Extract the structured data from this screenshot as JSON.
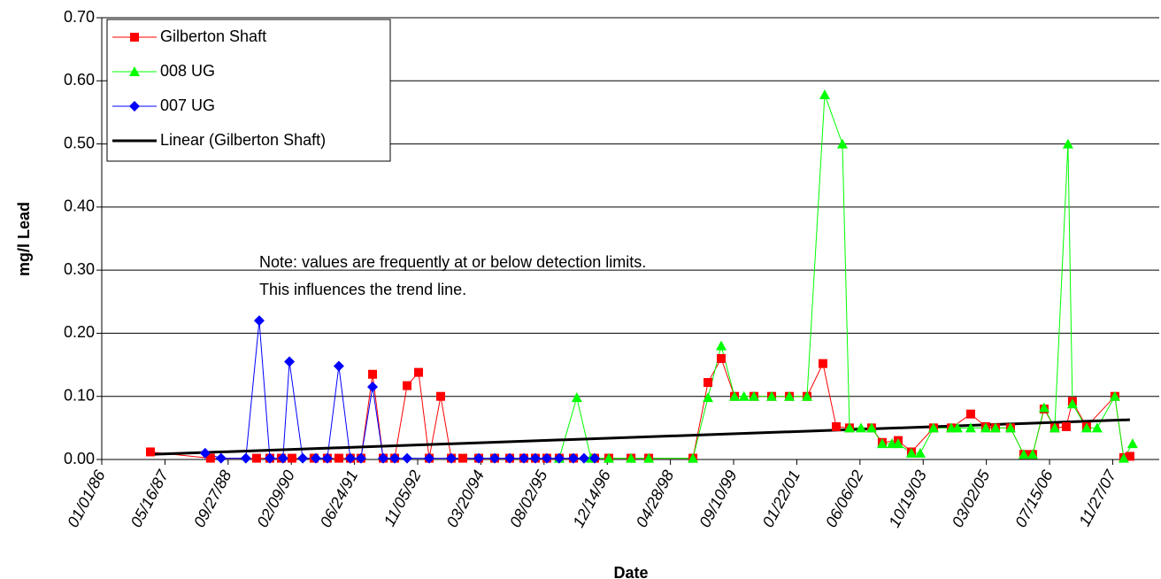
{
  "chart_data": {
    "type": "line",
    "x_label": "Date",
    "y_label": "mg/l Lead",
    "annotations": [
      "Note: values are frequently at or below detection limits.",
      "This influences the trend line."
    ],
    "legend": "upper left",
    "grid": true,
    "xlim": [
      "1986-01-01",
      "2008-11-29"
    ],
    "xticks": [
      {
        "value": "1986-01-01",
        "label": "01/01/86"
      },
      {
        "value": "1987-05-16",
        "label": "05/16/87"
      },
      {
        "value": "1988-09-27",
        "label": "09/27/88"
      },
      {
        "value": "1990-02-09",
        "label": "02/09/90"
      },
      {
        "value": "1991-06-24",
        "label": "06/24/91"
      },
      {
        "value": "1992-11-05",
        "label": "11/05/92"
      },
      {
        "value": "1994-03-20",
        "label": "03/20/94"
      },
      {
        "value": "1995-08-02",
        "label": "08/02/95"
      },
      {
        "value": "1996-12-14",
        "label": "12/14/96"
      },
      {
        "value": "1998-04-28",
        "label": "04/28/98"
      },
      {
        "value": "1999-09-10",
        "label": "09/10/99"
      },
      {
        "value": "2001-01-22",
        "label": "01/22/01"
      },
      {
        "value": "2002-06-06",
        "label": "06/06/02"
      },
      {
        "value": "2003-10-19",
        "label": "10/19/03"
      },
      {
        "value": "2005-03-02",
        "label": "03/02/05"
      },
      {
        "value": "2006-07-15",
        "label": "07/15/06"
      },
      {
        "value": "2007-11-27",
        "label": "11/27/07"
      }
    ],
    "ylim": [
      0,
      0.7
    ],
    "yticks": [
      {
        "value": 0,
        "label": "0.00"
      },
      {
        "value": 0.1,
        "label": "0.10"
      },
      {
        "value": 0.2,
        "label": "0.20"
      },
      {
        "value": 0.3,
        "label": "0.30"
      },
      {
        "value": 0.4,
        "label": "0.40"
      },
      {
        "value": 0.5,
        "label": "0.50"
      },
      {
        "value": 0.6,
        "label": "0.60"
      },
      {
        "value": 0.7,
        "label": "0.70"
      }
    ],
    "series": [
      {
        "name": "Gilberton Shaft",
        "color": "#ff0000",
        "marker": "square",
        "line_width": 1,
        "x": [
          "1987-01-21",
          "1988-05-10",
          "1989-05-10",
          "1989-08-23",
          "1989-11-22",
          "1990-02-14",
          "1990-08-08",
          "1990-11-21",
          "1991-02-20",
          "1991-05-22",
          "1991-08-14",
          "1991-11-14",
          "1992-02-06",
          "1992-05-07",
          "1992-08-13",
          "1992-11-12",
          "1993-02-04",
          "1993-05-06",
          "1993-07-29",
          "1993-10-28",
          "1994-03-03",
          "1994-07-07",
          "1994-11-03",
          "1995-02-23",
          "1995-05-25",
          "1995-08-24",
          "1995-11-30",
          "1996-03-21",
          "1996-09-05",
          "1996-12-26",
          "1997-06-20",
          "1997-11-07",
          "1998-10-23",
          "1999-02-19",
          "1999-06-04",
          "1999-09-17",
          "2000-02-18",
          "2000-07-07",
          "2000-11-24",
          "2001-04-13",
          "2001-08-17",
          "2001-11-30",
          "2002-03-15",
          "2002-09-06",
          "2002-11-29",
          "2003-04-04",
          "2003-07-18",
          "2004-01-09",
          "2004-05-28",
          "2004-10-29",
          "2005-02-25",
          "2005-05-13",
          "2005-09-09",
          "2005-12-23",
          "2006-03-03",
          "2006-06-02",
          "2006-08-25",
          "2006-11-24",
          "2007-01-12",
          "2007-05-04",
          "2007-12-14",
          "2008-02-22",
          "2008-04-11"
        ],
        "values": [
          0.012,
          0.002,
          0.002,
          0.002,
          0.002,
          0.002,
          0.002,
          0.002,
          0.002,
          0.002,
          0.002,
          0.135,
          0.002,
          0.002,
          0.117,
          0.138,
          0.002,
          0.1,
          0.002,
          0.002,
          0.002,
          0.002,
          0.002,
          0.002,
          0.002,
          0.002,
          0.002,
          0.002,
          0.002,
          0.002,
          0.002,
          0.002,
          0.002,
          0.122,
          0.16,
          0.1,
          0.1,
          0.1,
          0.1,
          0.1,
          0.152,
          0.052,
          0.05,
          0.05,
          0.027,
          0.03,
          0.012,
          0.05,
          0.05,
          0.072,
          0.052,
          0.05,
          0.05,
          0.008,
          0.008,
          0.08,
          0.05,
          0.052,
          0.092,
          0.052,
          0.1,
          0.003,
          0.005
        ]
      },
      {
        "name": "008 UG",
        "color": "#00ff00",
        "marker": "triangle",
        "line_width": 1,
        "x": [
          "1995-11-30",
          "1996-04-17",
          "1996-08-07",
          "1996-12-26",
          "1997-06-20",
          "1997-11-07",
          "1998-10-23",
          "1999-02-19",
          "1999-06-04",
          "1999-09-17",
          "1999-12-01",
          "2000-02-18",
          "2000-07-07",
          "2000-11-24",
          "2001-04-13",
          "2001-08-31",
          "2002-01-18",
          "2002-03-15",
          "2002-06-14",
          "2002-09-06",
          "2002-11-29",
          "2003-02-14",
          "2003-04-04",
          "2003-07-18",
          "2003-09-26",
          "2004-01-09",
          "2004-05-28",
          "2004-07-16",
          "2004-10-29",
          "2005-02-25",
          "2005-05-13",
          "2005-09-09",
          "2005-12-23",
          "2006-03-03",
          "2006-06-02",
          "2006-08-25",
          "2006-12-08",
          "2007-01-12",
          "2007-05-04",
          "2007-07-27",
          "2007-12-14",
          "2008-02-22",
          "2008-05-02"
        ],
        "values": [
          0.002,
          0.098,
          0.002,
          0.002,
          0.002,
          0.002,
          0.002,
          0.098,
          0.18,
          0.1,
          0.1,
          0.1,
          0.1,
          0.1,
          0.1,
          0.578,
          0.5,
          0.05,
          0.05,
          0.05,
          0.025,
          0.025,
          0.025,
          0.01,
          0.01,
          0.05,
          0.05,
          0.05,
          0.05,
          0.05,
          0.05,
          0.05,
          0.008,
          0.008,
          0.082,
          0.05,
          0.5,
          0.088,
          0.05,
          0.05,
          0.1,
          0.002,
          0.025
        ]
      },
      {
        "name": "007 UG",
        "color": "#0000ff",
        "marker": "diamond",
        "line_width": 1,
        "x": [
          "1988-03-29",
          "1988-08-02",
          "1989-02-14",
          "1989-05-31",
          "1989-08-23",
          "1989-12-05",
          "1990-01-25",
          "1990-05-10",
          "1990-08-22",
          "1990-11-21",
          "1991-02-20",
          "1991-05-22",
          "1991-08-14",
          "1991-11-14",
          "1992-02-06",
          "1992-05-07",
          "1992-08-13",
          "1993-02-04",
          "1993-07-29",
          "1994-03-03",
          "1994-07-07",
          "1994-11-03",
          "1995-02-23",
          "1995-05-25",
          "1995-08-24",
          "1995-11-30",
          "1996-03-21",
          "1996-06-13",
          "1996-09-05"
        ],
        "values": [
          0.01,
          0.002,
          0.002,
          0.22,
          0.002,
          0.002,
          0.155,
          0.002,
          0.002,
          0.002,
          0.148,
          0.002,
          0.002,
          0.115,
          0.002,
          0.002,
          0.002,
          0.002,
          0.002,
          0.002,
          0.002,
          0.002,
          0.002,
          0.002,
          0.002,
          0.002,
          0.002,
          0.002,
          0.002
        ]
      },
      {
        "name": "Linear (Gilberton Shaft)",
        "color": "#000000",
        "marker": "none",
        "line_width": 3,
        "x": [
          "1987-01-21",
          "2008-04-11"
        ],
        "values": [
          0.008,
          0.063
        ]
      }
    ]
  }
}
